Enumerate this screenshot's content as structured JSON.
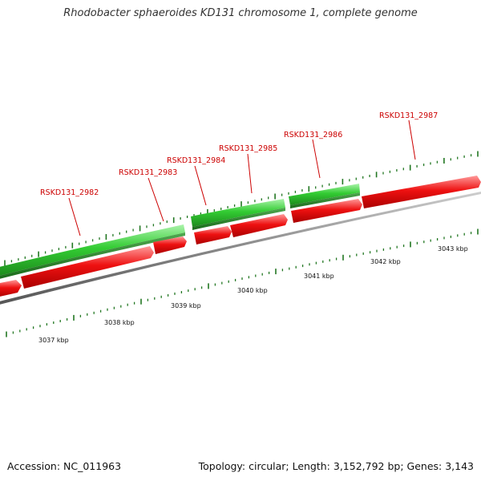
{
  "title": "Rhodobacter sphaeroides KD131 chromosome 1, complete genome",
  "footer": {
    "accession": "Accession: NC_011963",
    "summary": "Topology: circular; Length: 3,152,792 bp; Genes: 3,143"
  },
  "colors": {
    "forward_gene": "#33cc33",
    "reverse_gene": "#ee1111",
    "label": "#cc0000",
    "tick": "#227722",
    "backbone": "#888888"
  },
  "axis": {
    "labels": [
      "3037 kbp",
      "3038 kbp",
      "3039 kbp",
      "3040 kbp",
      "3041 kbp",
      "3042 kbp",
      "3043 kbp"
    ]
  },
  "genes": [
    {
      "name": "RSKD131_2982"
    },
    {
      "name": "RSKD131_2983"
    },
    {
      "name": "RSKD131_2984"
    },
    {
      "name": "RSKD131_2985"
    },
    {
      "name": "RSKD131_2986"
    },
    {
      "name": "RSKD131_2987"
    }
  ]
}
